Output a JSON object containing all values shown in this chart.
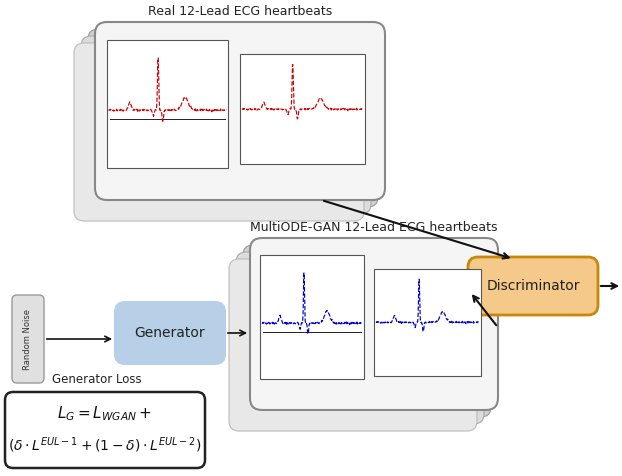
{
  "title_real": "Real 12-Lead ECG heartbeats",
  "title_gen": "MultiODE-GAN 12-Lead ECG heartbeats",
  "label_gen_loss": "Generator Loss",
  "label_random_noise": "Random Noise",
  "label_generator": "Generator",
  "label_discriminator": "Discriminator",
  "formula_line1": "$L_G = L_{WGAN}+$",
  "formula_line2": "$(\\delta \\cdot L^{EUL-1} + (1-\\delta) \\cdot L^{EUL-2})$",
  "real_box_fill": "#f2f2f2",
  "real_box_edge": "#999999",
  "gen_box_fill": "#f2f2f2",
  "gen_box_edge": "#999999",
  "generator_fill": "#b8cfe8",
  "generator_edge": "#b8cfe8",
  "discriminator_fill": "#f5c98a",
  "discriminator_edge": "#c8860a",
  "formula_box_edge": "#222222",
  "formula_box_fill": "#ffffff",
  "random_noise_fill": "#e0e0e0",
  "random_noise_edge": "#999999",
  "ecg_red": "#cc0000",
  "ecg_blue": "#0000cc",
  "arrow_color": "#111111",
  "stack_fill": [
    "#e8e8e8",
    "#dcdcdc",
    "#d0d0d0"
  ],
  "stack_edge": [
    "#bbbbbb",
    "#aaaaaa",
    "#999999"
  ]
}
